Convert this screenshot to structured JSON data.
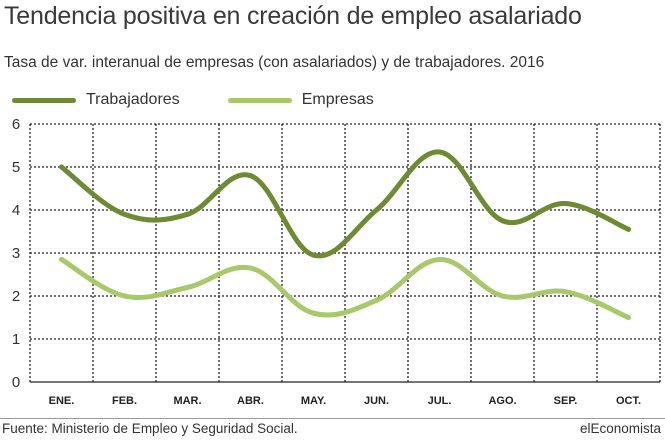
{
  "title": "Tendencia positiva en creación de empleo asalariado",
  "subtitle": "Tasa de var. interanual de empresas (con asalariados) y de trabajadores. 2016",
  "legend": [
    {
      "label": "Trabajadores",
      "color": "#6e8a32"
    },
    {
      "label": "Empresas",
      "color": "#a8c86a"
    }
  ],
  "footer": {
    "source": "Fuente: Ministerio de Empleo y Seguridad Social.",
    "brand": "elEconomista"
  },
  "chart_data": {
    "type": "line",
    "title": "Tendencia positiva en creación de empleo asalariado",
    "subtitle": "Tasa de var. interanual de empresas (con asalariados) y de trabajadores. 2016",
    "categories": [
      "ENE.",
      "FEB.",
      "MAR.",
      "ABR.",
      "MAY.",
      "JUN.",
      "JUL.",
      "AGO.",
      "SEP.",
      "OCT."
    ],
    "series": [
      {
        "name": "Trabajadores",
        "color": "#6e8a32",
        "values": [
          5.0,
          3.9,
          3.9,
          4.8,
          2.95,
          4.0,
          5.35,
          3.75,
          4.15,
          3.55
        ]
      },
      {
        "name": "Empresas",
        "color": "#a8c86a",
        "values": [
          2.85,
          2.0,
          2.2,
          2.65,
          1.6,
          1.9,
          2.85,
          2.0,
          2.1,
          1.5
        ]
      }
    ],
    "ylim": [
      0,
      6
    ],
    "yticks": [
      "0",
      "1",
      "2",
      "3",
      "4",
      "5",
      "6"
    ],
    "grid": true,
    "legend_position": "top-left"
  }
}
